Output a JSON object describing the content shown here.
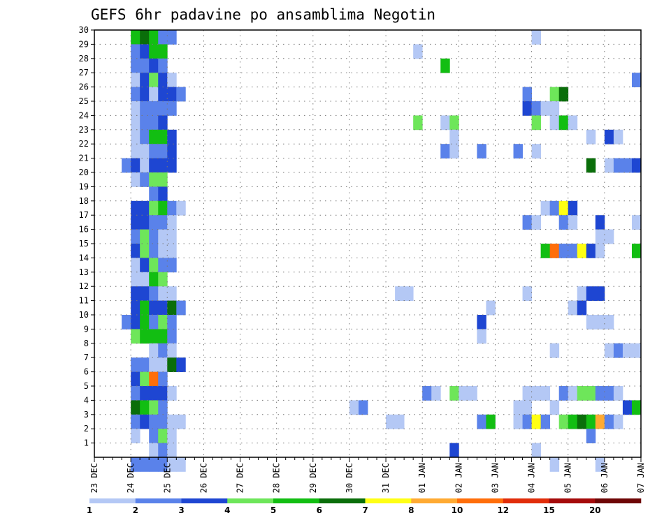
{
  "chart_data": {
    "type": "heatmap",
    "title": "GEFS 6hr padavine po ansamblima Negotin",
    "x_tick_labels": [
      "23 DEC",
      "24 DEC",
      "25 DEC",
      "26 DEC",
      "27 DEC",
      "28 DEC",
      "29 DEC",
      "30 DEC",
      "31 DEC",
      "01 JAN",
      "02 JAN",
      "03 JAN",
      "04 JAN",
      "05 JAN",
      "06 JAN",
      "07 JAN"
    ],
    "y_tick_labels": [
      "1",
      "2",
      "3",
      "4",
      "5",
      "6",
      "7",
      "8",
      "9",
      "10",
      "11",
      "12",
      "13",
      "14",
      "15",
      "16",
      "17",
      "18",
      "19",
      "20",
      "21",
      "22",
      "23",
      "24",
      "25",
      "26",
      "27",
      "28",
      "29",
      "30"
    ],
    "x_step_hours": 6,
    "num_steps": 60,
    "y_members": 30,
    "colorbar": {
      "levels": [
        "1",
        "2",
        "3",
        "4",
        "5",
        "6",
        "7",
        "8",
        "10",
        "12",
        "15",
        "20"
      ],
      "colors": [
        "#b4c8f5",
        "#5a82ea",
        "#1e46d2",
        "#6ee65a",
        "#12be12",
        "#0a6e0a",
        "#ffff14",
        "#ffaa32",
        "#ff6e0a",
        "#e12d0a",
        "#a50a0a",
        "#6e0505"
      ]
    },
    "cells": [
      [
        30,
        5,
        5
      ],
      [
        30,
        6,
        6
      ],
      [
        30,
        7,
        5
      ],
      [
        30,
        8,
        2
      ],
      [
        30,
        9,
        2
      ],
      [
        29,
        5,
        2
      ],
      [
        29,
        6,
        3
      ],
      [
        29,
        7,
        5
      ],
      [
        29,
        8,
        5
      ],
      [
        28,
        5,
        2
      ],
      [
        28,
        6,
        2
      ],
      [
        28,
        7,
        3
      ],
      [
        28,
        8,
        2
      ],
      [
        27,
        5,
        1
      ],
      [
        27,
        6,
        3
      ],
      [
        27,
        7,
        4
      ],
      [
        27,
        8,
        3
      ],
      [
        27,
        9,
        1
      ],
      [
        26,
        5,
        2
      ],
      [
        26,
        6,
        3
      ],
      [
        26,
        7,
        1
      ],
      [
        26,
        8,
        3
      ],
      [
        26,
        9,
        3
      ],
      [
        26,
        10,
        2
      ],
      [
        25,
        5,
        1
      ],
      [
        25,
        6,
        2
      ],
      [
        25,
        7,
        2
      ],
      [
        25,
        8,
        2
      ],
      [
        25,
        9,
        2
      ],
      [
        24,
        5,
        1
      ],
      [
        24,
        6,
        2
      ],
      [
        24,
        7,
        2
      ],
      [
        24,
        8,
        3
      ],
      [
        23,
        5,
        1
      ],
      [
        23,
        6,
        2
      ],
      [
        23,
        7,
        5
      ],
      [
        23,
        8,
        5
      ],
      [
        23,
        9,
        3
      ],
      [
        22,
        5,
        1
      ],
      [
        22,
        6,
        1
      ],
      [
        22,
        7,
        2
      ],
      [
        22,
        8,
        2
      ],
      [
        22,
        9,
        3
      ],
      [
        21,
        4,
        2
      ],
      [
        21,
        5,
        3
      ],
      [
        21,
        6,
        1
      ],
      [
        21,
        7,
        3
      ],
      [
        21,
        8,
        3
      ],
      [
        21,
        9,
        3
      ],
      [
        20,
        5,
        1
      ],
      [
        20,
        6,
        2
      ],
      [
        20,
        7,
        4
      ],
      [
        20,
        8,
        4
      ],
      [
        19,
        7,
        2
      ],
      [
        19,
        8,
        3
      ],
      [
        18,
        5,
        3
      ],
      [
        18,
        6,
        3
      ],
      [
        18,
        7,
        4
      ],
      [
        18,
        8,
        5
      ],
      [
        18,
        9,
        2
      ],
      [
        18,
        10,
        1
      ],
      [
        17,
        5,
        3
      ],
      [
        17,
        6,
        3
      ],
      [
        17,
        7,
        2
      ],
      [
        17,
        8,
        2
      ],
      [
        17,
        9,
        1
      ],
      [
        16,
        5,
        2
      ],
      [
        16,
        6,
        4
      ],
      [
        16,
        7,
        2
      ],
      [
        16,
        8,
        1
      ],
      [
        16,
        9,
        1
      ],
      [
        15,
        5,
        3
      ],
      [
        15,
        6,
        4
      ],
      [
        15,
        7,
        2
      ],
      [
        15,
        8,
        1
      ],
      [
        15,
        9,
        1
      ],
      [
        14,
        5,
        1
      ],
      [
        14,
        6,
        3
      ],
      [
        14,
        7,
        4
      ],
      [
        14,
        8,
        2
      ],
      [
        14,
        9,
        2
      ],
      [
        13,
        5,
        1
      ],
      [
        13,
        6,
        1
      ],
      [
        13,
        7,
        5
      ],
      [
        13,
        8,
        4
      ],
      [
        12,
        5,
        3
      ],
      [
        12,
        6,
        3
      ],
      [
        12,
        7,
        2
      ],
      [
        12,
        8,
        1
      ],
      [
        12,
        9,
        1
      ],
      [
        11,
        5,
        3
      ],
      [
        11,
        6,
        5
      ],
      [
        11,
        7,
        3
      ],
      [
        11,
        8,
        3
      ],
      [
        11,
        9,
        6
      ],
      [
        11,
        10,
        2
      ],
      [
        10,
        4,
        2
      ],
      [
        10,
        5,
        3
      ],
      [
        10,
        6,
        5
      ],
      [
        10,
        7,
        2
      ],
      [
        10,
        8,
        4
      ],
      [
        10,
        9,
        2
      ],
      [
        9,
        5,
        4
      ],
      [
        9,
        6,
        5
      ],
      [
        9,
        7,
        5
      ],
      [
        9,
        8,
        5
      ],
      [
        9,
        9,
        2
      ],
      [
        8,
        7,
        1
      ],
      [
        8,
        8,
        2
      ],
      [
        8,
        9,
        1
      ],
      [
        7,
        5,
        2
      ],
      [
        7,
        6,
        2
      ],
      [
        7,
        7,
        1
      ],
      [
        7,
        8,
        1
      ],
      [
        7,
        9,
        6
      ],
      [
        7,
        10,
        3
      ],
      [
        6,
        5,
        3
      ],
      [
        6,
        6,
        4
      ],
      [
        6,
        7,
        9
      ],
      [
        6,
        8,
        2
      ],
      [
        5,
        5,
        2
      ],
      [
        5,
        6,
        3
      ],
      [
        5,
        7,
        3
      ],
      [
        5,
        8,
        3
      ],
      [
        5,
        9,
        1
      ],
      [
        4,
        5,
        6
      ],
      [
        4,
        6,
        5
      ],
      [
        4,
        7,
        4
      ],
      [
        4,
        8,
        2
      ],
      [
        3,
        5,
        2
      ],
      [
        3,
        6,
        3
      ],
      [
        3,
        7,
        2
      ],
      [
        3,
        8,
        2
      ],
      [
        3,
        9,
        1
      ],
      [
        3,
        10,
        1
      ],
      [
        2,
        5,
        1
      ],
      [
        2,
        7,
        2
      ],
      [
        2,
        8,
        4
      ],
      [
        2,
        9,
        1
      ],
      [
        1,
        7,
        1
      ],
      [
        1,
        8,
        2
      ],
      [
        1,
        9,
        1
      ],
      [
        0,
        5,
        2
      ],
      [
        0,
        6,
        2
      ],
      [
        0,
        7,
        2
      ],
      [
        0,
        8,
        2
      ],
      [
        0,
        9,
        1
      ],
      [
        0,
        10,
        1
      ],
      [
        30,
        49,
        1
      ],
      [
        29,
        36,
        1
      ],
      [
        28,
        39,
        5
      ],
      [
        27,
        60,
        2
      ],
      [
        26,
        48,
        2
      ],
      [
        26,
        51,
        4
      ],
      [
        26,
        52,
        6
      ],
      [
        25,
        48,
        3
      ],
      [
        25,
        49,
        2
      ],
      [
        25,
        50,
        1
      ],
      [
        25,
        51,
        1
      ],
      [
        24,
        36,
        4
      ],
      [
        24,
        39,
        1
      ],
      [
        24,
        40,
        4
      ],
      [
        24,
        49,
        4
      ],
      [
        24,
        51,
        1
      ],
      [
        24,
        52,
        5
      ],
      [
        24,
        53,
        1
      ],
      [
        23,
        40,
        1
      ],
      [
        23,
        55,
        1
      ],
      [
        23,
        57,
        3
      ],
      [
        23,
        58,
        1
      ],
      [
        22,
        39,
        2
      ],
      [
        22,
        40,
        1
      ],
      [
        22,
        43,
        2
      ],
      [
        22,
        47,
        2
      ],
      [
        22,
        49,
        1
      ],
      [
        21,
        55,
        6
      ],
      [
        21,
        57,
        1
      ],
      [
        21,
        58,
        2
      ],
      [
        21,
        59,
        2
      ],
      [
        21,
        60,
        3
      ],
      [
        18,
        50,
        1
      ],
      [
        18,
        51,
        2
      ],
      [
        18,
        52,
        7
      ],
      [
        18,
        53,
        3
      ],
      [
        17,
        48,
        2
      ],
      [
        17,
        49,
        1
      ],
      [
        17,
        52,
        2
      ],
      [
        17,
        53,
        1
      ],
      [
        17,
        56,
        3
      ],
      [
        17,
        60,
        1
      ],
      [
        16,
        56,
        1
      ],
      [
        16,
        57,
        1
      ],
      [
        15,
        50,
        5
      ],
      [
        15,
        51,
        9
      ],
      [
        15,
        52,
        2
      ],
      [
        15,
        53,
        2
      ],
      [
        15,
        54,
        7
      ],
      [
        15,
        55,
        3
      ],
      [
        15,
        56,
        1
      ],
      [
        15,
        60,
        5
      ],
      [
        12,
        34,
        1
      ],
      [
        12,
        35,
        1
      ],
      [
        12,
        48,
        1
      ],
      [
        12,
        54,
        1
      ],
      [
        12,
        55,
        3
      ],
      [
        12,
        56,
        3
      ],
      [
        11,
        44,
        1
      ],
      [
        11,
        53,
        1
      ],
      [
        11,
        54,
        3
      ],
      [
        10,
        43,
        3
      ],
      [
        10,
        55,
        1
      ],
      [
        10,
        56,
        1
      ],
      [
        10,
        57,
        1
      ],
      [
        9,
        43,
        1
      ],
      [
        8,
        51,
        1
      ],
      [
        8,
        57,
        1
      ],
      [
        8,
        58,
        2
      ],
      [
        8,
        59,
        1
      ],
      [
        8,
        60,
        1
      ],
      [
        5,
        37,
        2
      ],
      [
        5,
        38,
        1
      ],
      [
        5,
        40,
        4
      ],
      [
        5,
        41,
        1
      ],
      [
        5,
        42,
        1
      ],
      [
        5,
        48,
        1
      ],
      [
        5,
        49,
        1
      ],
      [
        5,
        50,
        1
      ],
      [
        5,
        52,
        2
      ],
      [
        5,
        53,
        1
      ],
      [
        5,
        54,
        4
      ],
      [
        5,
        55,
        4
      ],
      [
        5,
        56,
        2
      ],
      [
        5,
        57,
        2
      ],
      [
        5,
        58,
        1
      ],
      [
        4,
        29,
        1
      ],
      [
        4,
        30,
        2
      ],
      [
        4,
        47,
        1
      ],
      [
        4,
        48,
        1
      ],
      [
        4,
        51,
        1
      ],
      [
        4,
        59,
        3
      ],
      [
        4,
        60,
        5
      ],
      [
        3,
        33,
        1
      ],
      [
        3,
        34,
        1
      ],
      [
        3,
        43,
        2
      ],
      [
        3,
        44,
        5
      ],
      [
        3,
        47,
        1
      ],
      [
        3,
        48,
        2
      ],
      [
        3,
        49,
        7
      ],
      [
        3,
        50,
        2
      ],
      [
        3,
        52,
        4
      ],
      [
        3,
        53,
        5
      ],
      [
        3,
        54,
        6
      ],
      [
        3,
        55,
        5
      ],
      [
        3,
        56,
        8
      ],
      [
        3,
        57,
        2
      ],
      [
        3,
        58,
        1
      ],
      [
        2,
        55,
        2
      ],
      [
        1,
        40,
        3
      ],
      [
        1,
        49,
        1
      ],
      [
        0,
        51,
        1
      ],
      [
        0,
        56,
        1
      ]
    ]
  }
}
